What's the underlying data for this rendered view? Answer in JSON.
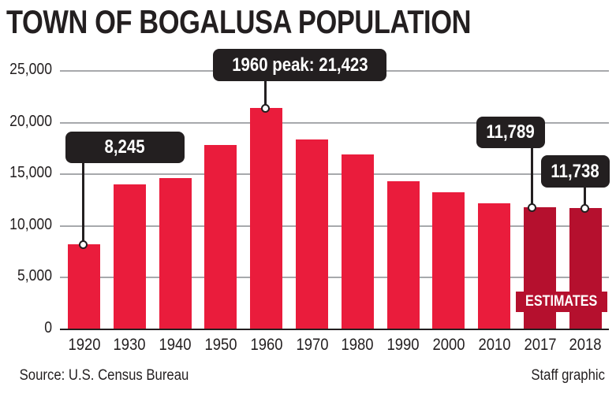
{
  "title": "TOWN OF BOGALUSA POPULATION",
  "source": "Source: U.S. Census Bureau",
  "credit": "Staff graphic",
  "colors": {
    "bar": "#ea1c3c",
    "estimate_bar": "#b5102e",
    "callout_bg": "#231f20",
    "grid": "#a7a9ac",
    "text": "#231f20"
  },
  "estimates_label": "ESTIMATES",
  "chart_data": {
    "type": "bar",
    "title": "TOWN OF BOGALUSA POPULATION",
    "xlabel": "",
    "ylabel": "",
    "categories": [
      "1920",
      "1930",
      "1940",
      "1950",
      "1960",
      "1970",
      "1980",
      "1990",
      "2000",
      "2010",
      "2017",
      "2018"
    ],
    "values": [
      8245,
      14000,
      14600,
      17800,
      21423,
      18400,
      16900,
      14300,
      13300,
      12200,
      11789,
      11738
    ],
    "estimate_flags": [
      false,
      false,
      false,
      false,
      false,
      false,
      false,
      false,
      false,
      false,
      true,
      true
    ],
    "ylim": [
      0,
      25000
    ],
    "yticks": [
      0,
      5000,
      10000,
      15000,
      20000,
      25000
    ],
    "ytick_labels": [
      "0",
      "5,000",
      "10,000",
      "15,000",
      "20,000",
      "25,000"
    ],
    "grid": true,
    "legend": null,
    "annotations": [
      {
        "category": "1920",
        "text": "8,245"
      },
      {
        "category": "1960",
        "text": "1960 peak: 21,423"
      },
      {
        "category": "2017",
        "text": "11,789"
      },
      {
        "category": "2018",
        "text": "11,738"
      }
    ],
    "band_label": {
      "categories": [
        "2017",
        "2018"
      ],
      "text": "ESTIMATES"
    }
  }
}
